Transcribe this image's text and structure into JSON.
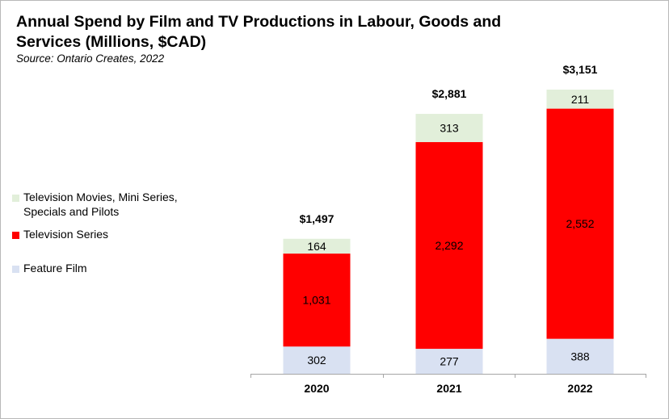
{
  "title": "Annual Spend by Film and TV Productions in Labour, Goods and Services (Millions, $CAD)",
  "subtitle": "Source: Ontario Creates, 2022",
  "colors": {
    "feature_film": "#d9e1f2",
    "television_series": "#ff0000",
    "tv_movies": "#e2efda"
  },
  "chart_data": {
    "type": "bar",
    "stacked": true,
    "categories": [
      "2020",
      "2021",
      "2022"
    ],
    "series": [
      {
        "name": "Feature Film",
        "values": [
          302,
          277,
          388
        ],
        "labels": [
          "302",
          "277",
          "388"
        ]
      },
      {
        "name": "Television Series",
        "values": [
          1031,
          2292,
          2552
        ],
        "labels": [
          "1,031",
          "2,292",
          "2,552"
        ]
      },
      {
        "name": "Television Movies, Mini Series, Specials and Pilots",
        "values": [
          164,
          313,
          211
        ],
        "labels": [
          "164",
          "313",
          "211"
        ]
      }
    ],
    "totals": [
      1497,
      2881,
      3151
    ],
    "total_labels": [
      "$1,497",
      "$2,881",
      "$3,151"
    ],
    "legend": {
      "position": "left",
      "entries": [
        {
          "line1": "Television Movies, Mini Series,",
          "line2": "Specials and Pilots"
        },
        {
          "line1": "Television Series"
        },
        {
          "line1": "Feature Film"
        }
      ]
    },
    "ylim": [
      0,
      3151
    ],
    "grid": false,
    "xlabel": "",
    "ylabel": ""
  }
}
